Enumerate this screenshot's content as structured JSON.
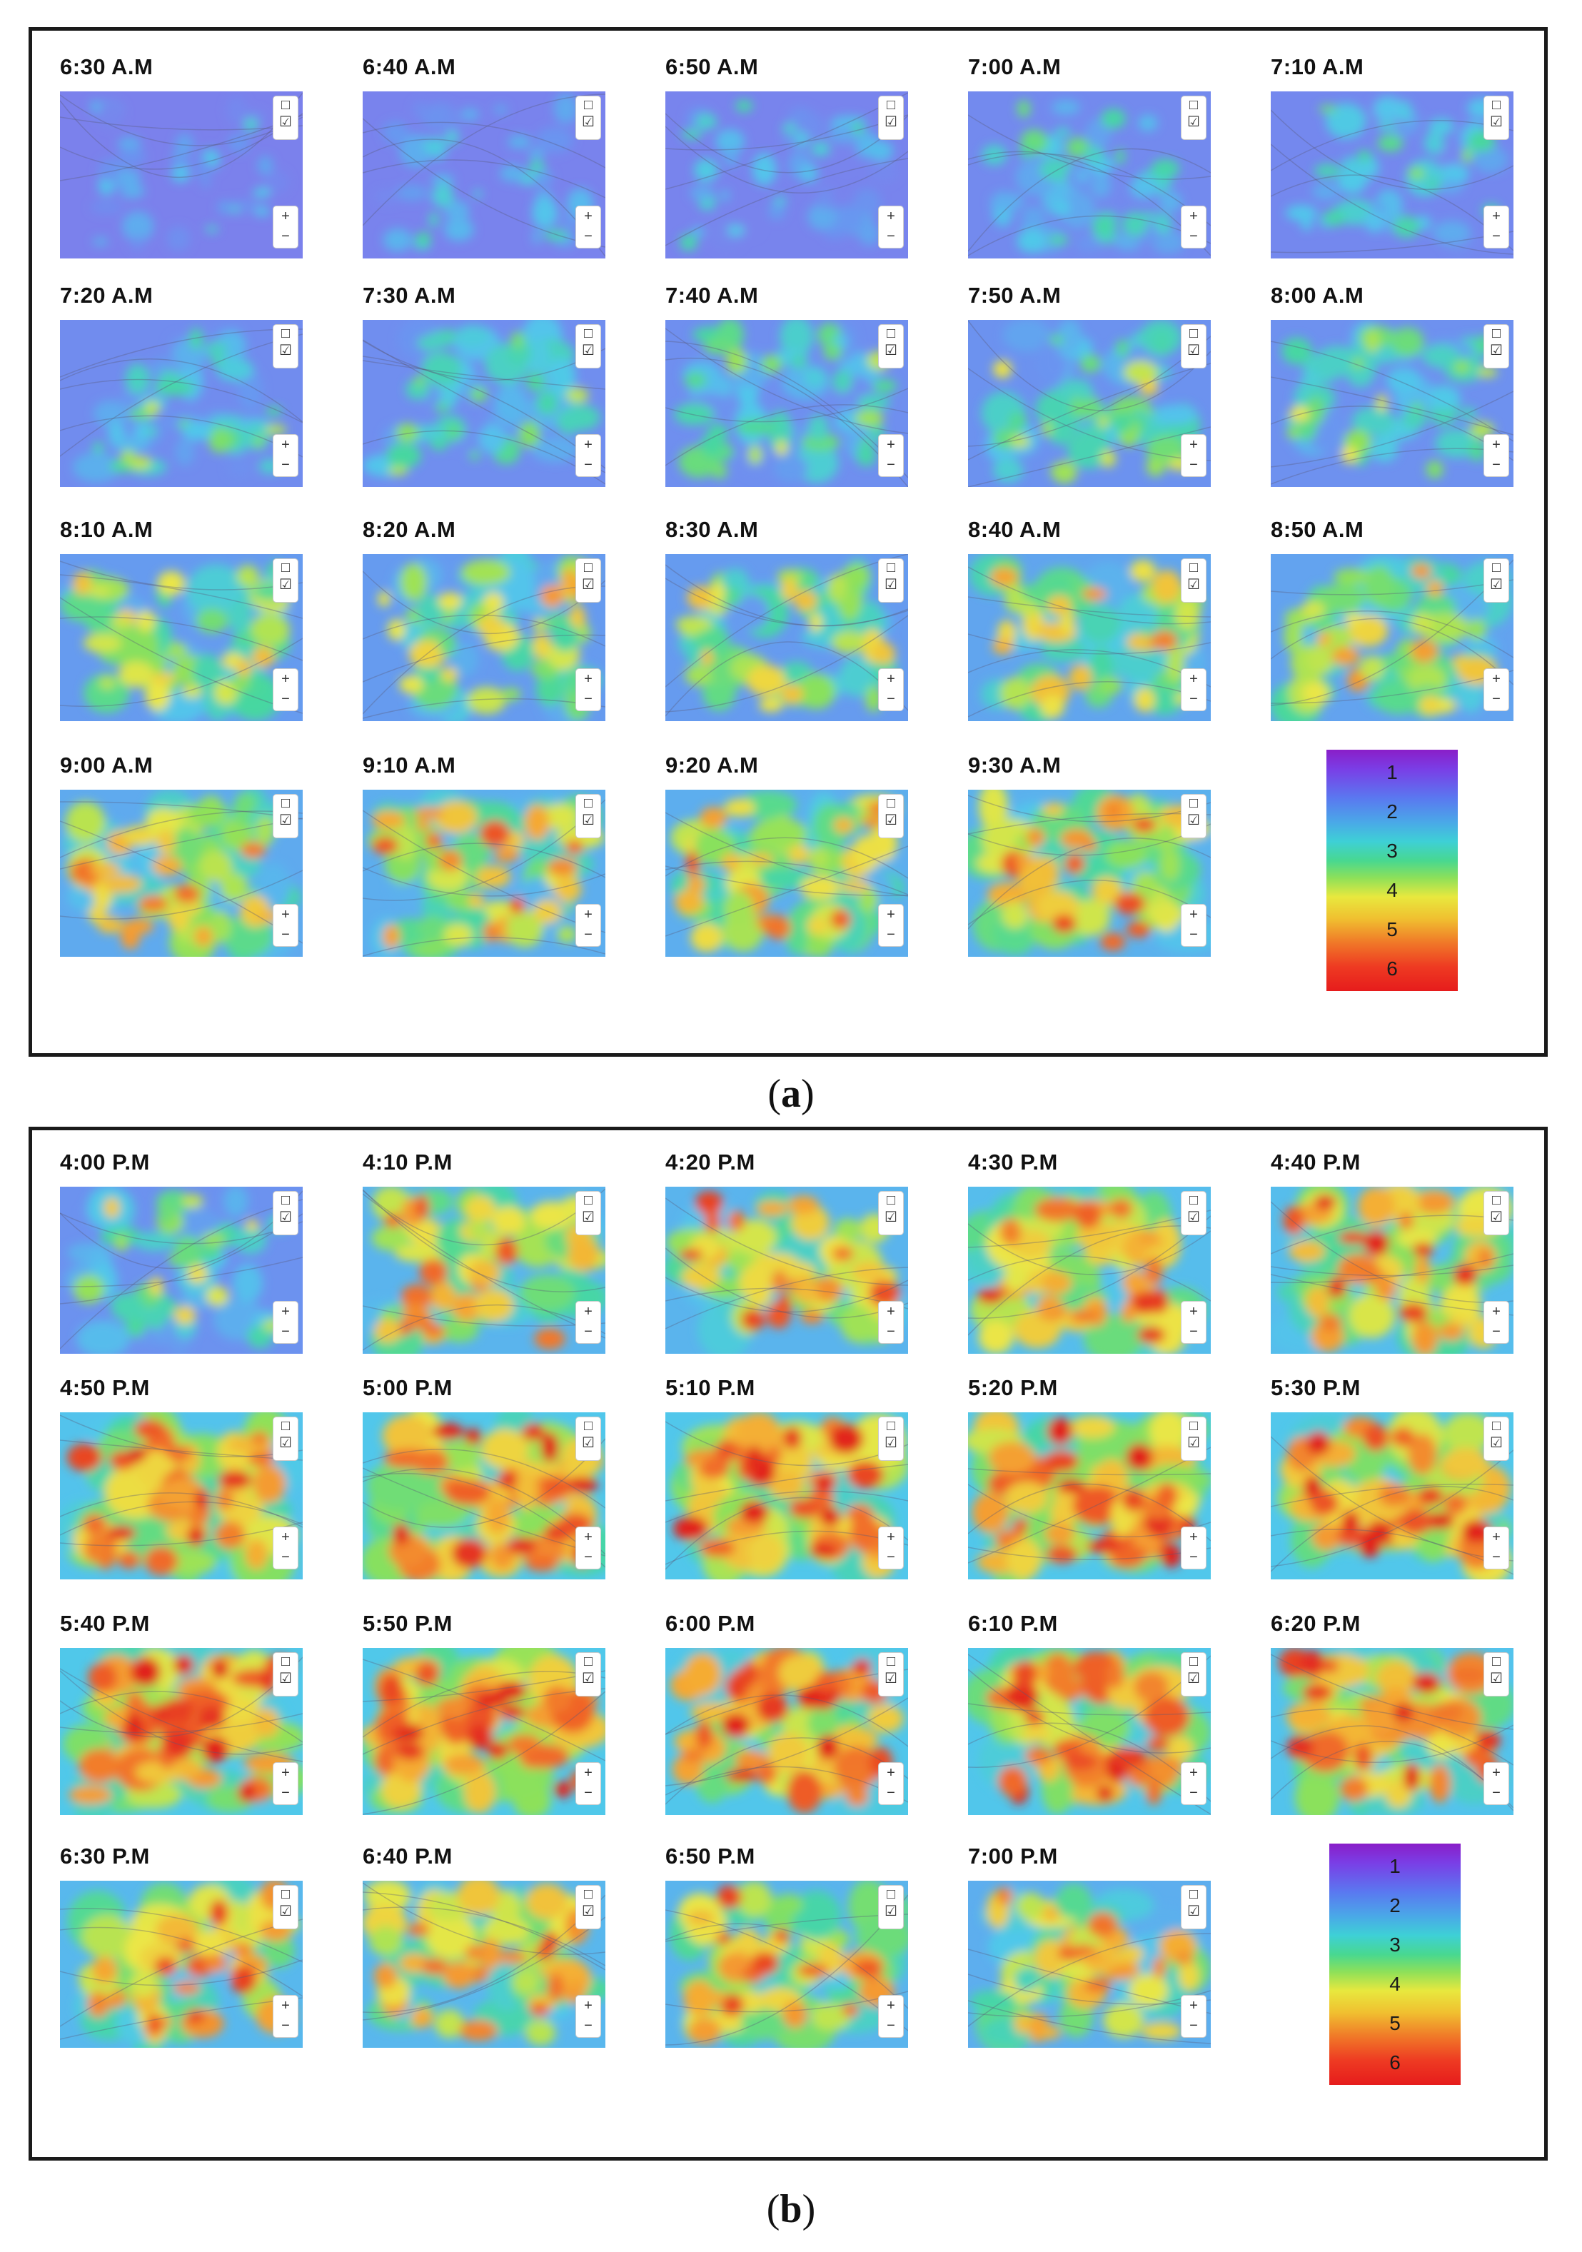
{
  "panel_a": {
    "caption_open": "(",
    "caption_letter": "a",
    "caption_close": ")",
    "times": [
      "6:30 A.M",
      "6:40 A.M",
      "6:50 A.M",
      "7:00 A.M",
      "7:10 A.M",
      "7:20 A.M",
      "7:30 A.M",
      "7:40 A.M",
      "7:50 A.M",
      "8:00 A.M",
      "8:10 A.M",
      "8:20 A.M",
      "8:30 A.M",
      "8:40 A.M",
      "8:50 A.M",
      "9:00 A.M",
      "9:10 A.M",
      "9:20 A.M",
      "9:30 A.M"
    ],
    "intensity": [
      0.15,
      0.18,
      0.2,
      0.3,
      0.28,
      0.35,
      0.38,
      0.4,
      0.45,
      0.42,
      0.55,
      0.55,
      0.55,
      0.62,
      0.6,
      0.65,
      0.68,
      0.68,
      0.7
    ]
  },
  "panel_b": {
    "caption_open": "(",
    "caption_letter": "b",
    "caption_close": ")",
    "times": [
      "4:00 P.M",
      "4:10 P.M",
      "4:20 P.M",
      "4:30 P.M",
      "4:40 P.M",
      "4:50 P.M",
      "5:00 P.M",
      "5:10 P.M",
      "5:20 P.M",
      "5:30 P.M",
      "5:40 P.M",
      "5:50 P.M",
      "6:00 P.M",
      "6:10 P.M",
      "6:20 P.M",
      "6:30 P.M",
      "6:40 P.M",
      "6:50 P.M",
      "7:00 P.M"
    ],
    "intensity": [
      0.45,
      0.72,
      0.72,
      0.78,
      0.78,
      0.82,
      0.85,
      0.85,
      0.85,
      0.85,
      0.86,
      0.86,
      0.84,
      0.84,
      0.82,
      0.75,
      0.74,
      0.72,
      0.68
    ]
  },
  "legend": {
    "levels": [
      "1",
      "2",
      "3",
      "4",
      "5",
      "6"
    ],
    "colors": [
      "#8a1ec8",
      "#5a78f0",
      "#3ed0d6",
      "#e8e83e",
      "#f07828",
      "#e61c1c"
    ]
  },
  "map_controls": {
    "zoom_in": "+",
    "zoom_out": "−"
  }
}
